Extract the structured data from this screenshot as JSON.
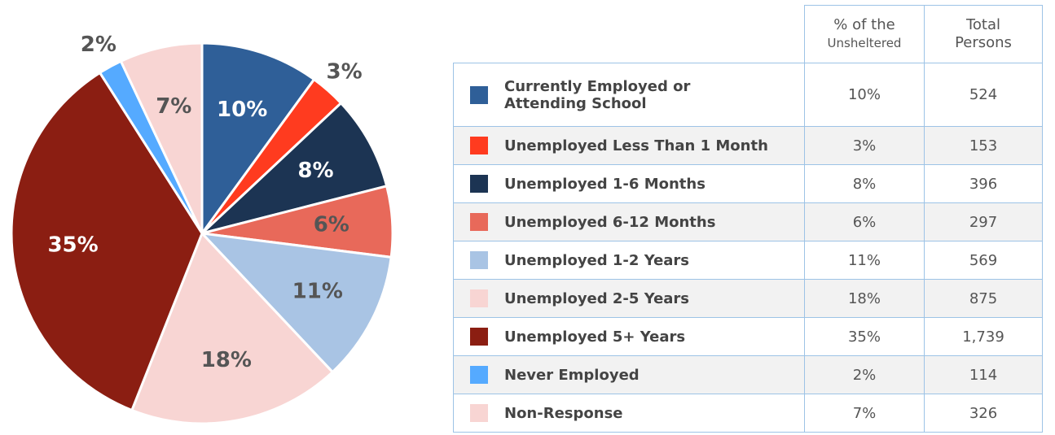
{
  "chart_data": {
    "type": "pie",
    "categories": [
      "Currently Employed or Attending School",
      "Unemployed Less Than 1 Month",
      "Unemployed 1-6 Months",
      "Unemployed 6-12 Months",
      "Unemployed 1-2 Years",
      "Unemployed 2-5 Years",
      "Unemployed 5+ Years",
      "Never Employed",
      "Non-Response"
    ],
    "values": [
      10,
      3,
      8,
      6,
      11,
      18,
      35,
      2,
      7
    ],
    "value_labels": [
      "10%",
      "3%",
      "8%",
      "6%",
      "11%",
      "18%",
      "35%",
      "2%",
      "7%"
    ],
    "colors": [
      "#2f5f98",
      "#ff3b1f",
      "#1c3453",
      "#e8695a",
      "#a9c4e4",
      "#f8d5d3",
      "#8b1e12",
      "#55aaff",
      "#f8d5d3"
    ]
  },
  "table": {
    "header": [
      [
        "% of the",
        "Unsheltered"
      ],
      [
        "Total",
        "Persons"
      ]
    ],
    "totals": [
      "524",
      "153",
      "396",
      "297",
      "569",
      "875",
      "1,739",
      "114",
      "326"
    ]
  }
}
